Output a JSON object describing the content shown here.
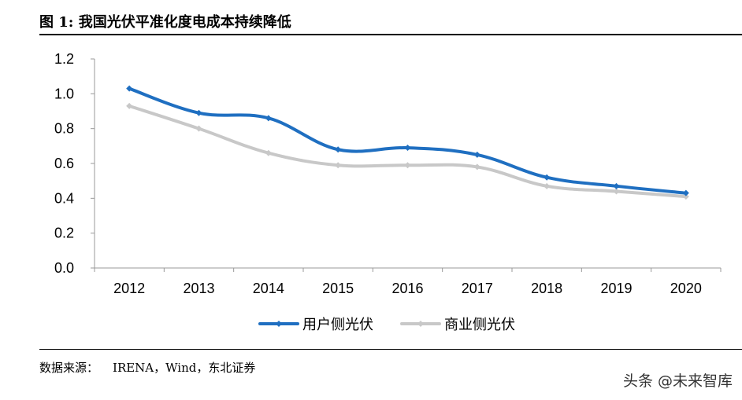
{
  "header": {
    "title": "图 1:  我国光伏平准化度电成本持续降低"
  },
  "footer": {
    "source_label": "数据来源：",
    "source_text": "IRENA，Wind，东北证券"
  },
  "watermark": "头条 @未来智库",
  "chart_data": {
    "type": "line",
    "title": "",
    "xlabel": "",
    "ylabel": "",
    "categories": [
      "2012",
      "2013",
      "2014",
      "2015",
      "2016",
      "2017",
      "2018",
      "2019",
      "2020"
    ],
    "ylim": [
      0,
      1.2
    ],
    "yticks": [
      "0.0",
      "0.2",
      "0.4",
      "0.6",
      "0.8",
      "1.0",
      "1.2"
    ],
    "grid": false,
    "legend_position": "bottom",
    "series": [
      {
        "name": "用户侧光伏",
        "color": "#1f6fc1",
        "values": [
          1.03,
          0.89,
          0.86,
          0.68,
          0.69,
          0.65,
          0.52,
          0.47,
          0.43
        ]
      },
      {
        "name": "商业侧光伏",
        "color": "#c8c8c8",
        "values": [
          0.93,
          0.8,
          0.66,
          0.59,
          0.59,
          0.58,
          0.47,
          0.44,
          0.41
        ]
      }
    ]
  }
}
